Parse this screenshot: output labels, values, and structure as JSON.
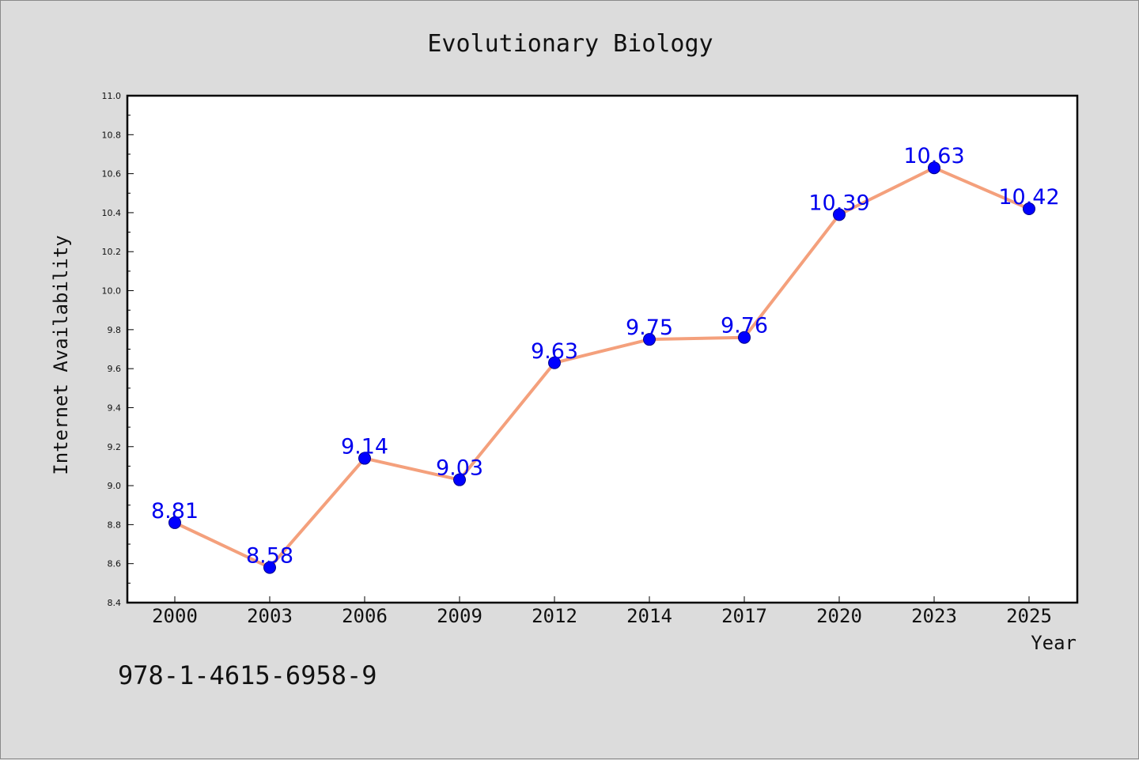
{
  "chart_data": {
    "type": "line",
    "title": "Evolutionary Biology",
    "xlabel": "Year",
    "ylabel": "Internet Availability",
    "categories": [
      "2000",
      "2003",
      "2006",
      "2009",
      "2012",
      "2014",
      "2017",
      "2020",
      "2023",
      "2025"
    ],
    "series": [
      {
        "values": [
          8.81,
          8.58,
          9.14,
          9.03,
          9.63,
          9.75,
          9.76,
          10.39,
          10.63,
          10.42
        ],
        "data_labels": [
          "8.81",
          "8.58",
          "9.14",
          "9.03",
          "9.63",
          "9.75",
          "9.76",
          "10.39",
          "10.63",
          "10.42"
        ]
      }
    ],
    "ylim": [
      8.4,
      11.0
    ],
    "yticks": [
      "8.4",
      "8.6",
      "8.8",
      "9.0",
      "9.2",
      "9.4",
      "9.6",
      "9.8",
      "10.0",
      "10.2",
      "10.4",
      "10.6",
      "10.8",
      "11.0"
    ],
    "grid": false,
    "legend": "none",
    "colors": {
      "line": "#f4a07c",
      "marker": "#0000ff",
      "marker_edge": "#00008b",
      "data_label": "#0000ee",
      "background": "#dcdcdc",
      "plot_area": "#ffffff"
    }
  },
  "footer": {
    "isbn": "978-1-4615-6958-9"
  }
}
